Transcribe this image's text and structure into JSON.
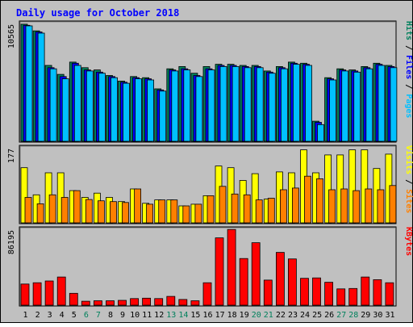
{
  "chart_data": {
    "type": "bar",
    "title": "Daily usage for October 2018",
    "categories": [
      "1",
      "2",
      "3",
      "4",
      "5",
      "6",
      "7",
      "8",
      "9",
      "10",
      "11",
      "12",
      "13",
      "14",
      "15",
      "16",
      "17",
      "18",
      "19",
      "20",
      "21",
      "22",
      "23",
      "24",
      "25",
      "26",
      "27",
      "28",
      "29",
      "30",
      "31"
    ],
    "weekend_days": [
      "6",
      "7",
      "13",
      "14",
      "20",
      "21",
      "27",
      "28"
    ],
    "panels": [
      {
        "name": "hits-files-pages",
        "axis_max_label": "10565",
        "ymax": 10565,
        "ylabel_parts": [
          {
            "text": "Pages",
            "color": "#00c0ff"
          },
          {
            "text": " / ",
            "color": "#000000"
          },
          {
            "text": "Files",
            "color": "#0000ff"
          },
          {
            "text": " / ",
            "color": "#000000"
          },
          {
            "text": "Hits",
            "color": "#00805c"
          }
        ],
        "series": [
          {
            "name": "Hits",
            "color": "#00805c",
            "values": [
              10500,
              9900,
              6800,
              6000,
              7100,
              6600,
              6400,
              5900,
              5400,
              5800,
              5700,
              4700,
              6500,
              6700,
              6100,
              6700,
              6900,
              6900,
              6800,
              6800,
              6300,
              6700,
              7100,
              7000,
              1800,
              5700,
              6500,
              6400,
              6700,
              7000,
              6800
            ]
          },
          {
            "name": "Files",
            "color": "#0000ff",
            "values": [
              10400,
              9800,
              6600,
              5800,
              7000,
              6400,
              6200,
              5800,
              5300,
              5700,
              5600,
              4600,
              6400,
              6500,
              5900,
              6500,
              6800,
              6800,
              6700,
              6700,
              6200,
              6600,
              7000,
              6900,
              1700,
              5600,
              6400,
              6300,
              6600,
              6900,
              6700
            ]
          },
          {
            "name": "Pages",
            "color": "#00c0ff",
            "values": [
              10350,
              9700,
              6500,
              5600,
              6800,
              6300,
              6100,
              5700,
              5200,
              5600,
              5500,
              4500,
              6300,
              6400,
              5800,
              6400,
              6700,
              6700,
              6600,
              6600,
              6100,
              6500,
              6900,
              6800,
              1500,
              5500,
              6300,
              6200,
              6500,
              6800,
              6600
            ]
          }
        ]
      },
      {
        "name": "visits-sites",
        "axis_max_label": "177",
        "ymax": 177,
        "ylabel_parts": [
          {
            "text": "Sites",
            "color": "#ff8000"
          },
          {
            "text": " / ",
            "color": "#000000"
          },
          {
            "text": "Visits",
            "color": "#ffff00"
          }
        ],
        "series": [
          {
            "name": "Visits",
            "color": "#ffff00",
            "values": [
              130,
              66,
              118,
              118,
              76,
              60,
              70,
              60,
              50,
              80,
              46,
              54,
              54,
              40,
              44,
              64,
              134,
              130,
              100,
              116,
              56,
              120,
              118,
              172,
              118,
              160,
              160,
              172,
              172,
              128,
              162
            ]
          },
          {
            "name": "Sites",
            "color": "#ff8000",
            "values": [
              60,
              45,
              66,
              60,
              76,
              55,
              52,
              50,
              48,
              80,
              44,
              54,
              54,
              40,
              44,
              64,
              86,
              68,
              66,
              54,
              58,
              78,
              82,
              110,
              104,
              78,
              80,
              76,
              80,
              78,
              88
            ]
          }
        ]
      },
      {
        "name": "kbytes",
        "axis_max_label": "86195",
        "ymax": 86195,
        "ylabel_parts": [
          {
            "text": "KBytes",
            "color": "#ff0000"
          }
        ],
        "series": [
          {
            "name": "KBytes",
            "color": "#ff0000",
            "values": [
              24000,
              25500,
              27500,
              32000,
              13500,
              4500,
              5000,
              5000,
              5500,
              7500,
              8000,
              7500,
              10000,
              6500,
              5000,
              25500,
              76500,
              86000,
              53000,
              71000,
              28500,
              60000,
              52500,
              30500,
              31000,
              26000,
              18500,
              19000,
              32000,
              29000,
              25500
            ]
          }
        ]
      }
    ]
  }
}
